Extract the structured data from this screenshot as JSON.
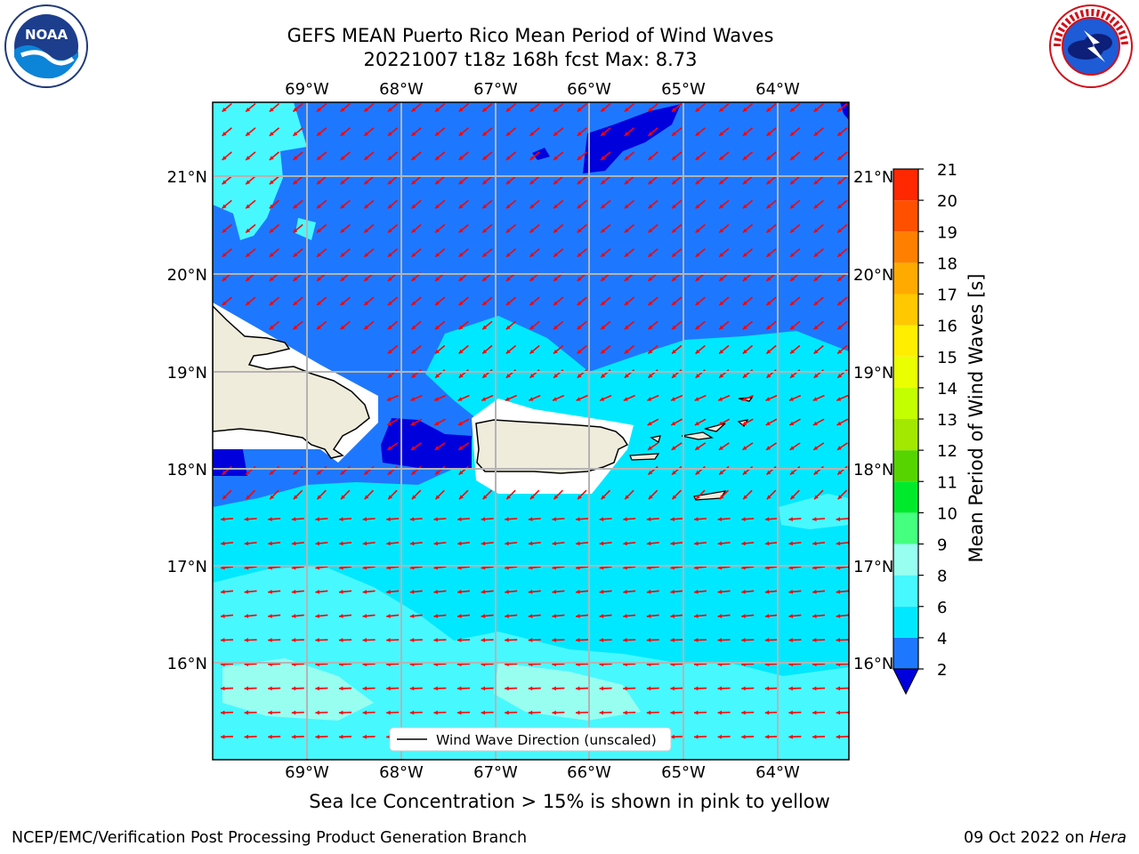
{
  "header": {
    "title_line1": "GEFS MEAN Puerto Rico Mean Period of Wind Waves",
    "title_line2": "20221007 t18z 168h fcst   Max: 8.73"
  },
  "logos": {
    "left": "noaa-logo",
    "right": "national-weather-service-logo",
    "left_text": "NOAA",
    "right_text": "NATIONAL WEATHER SERVICE"
  },
  "map": {
    "lon_labels": [
      "69°W",
      "68°W",
      "67°W",
      "66°W",
      "65°W",
      "64°W"
    ],
    "lat_labels": [
      "21°N",
      "20°N",
      "19°N",
      "18°N",
      "17°N",
      "16°N"
    ],
    "legend_label": "Wind Wave Direction (unscaled)",
    "colors": {
      "land": "#efecdc",
      "arrow": "#ff0000",
      "grid": "#b4b4b4"
    }
  },
  "colorbar": {
    "title": "Mean Period of Wind Waves [s]",
    "ticks": [
      "2",
      "4",
      "6",
      "8",
      "9",
      "10",
      "11",
      "12",
      "13",
      "14",
      "15",
      "16",
      "17",
      "18",
      "19",
      "20",
      "21"
    ],
    "colors": [
      "#0000dd",
      "#1e78ff",
      "#00e8ff",
      "#48f8ff",
      "#98fff0",
      "#45ff7f",
      "#00ea2b",
      "#56d400",
      "#a2e800",
      "#c4ff00",
      "#eaff00",
      "#ffee00",
      "#ffc800",
      "#ffaa00",
      "#ff8000",
      "#ff5000",
      "#ff2800",
      "#ff0000"
    ]
  },
  "footer": {
    "note": "Sea Ice Concentration > 15% is shown in pink to yellow",
    "left": "NCEP/EMC/Verification Post Processing Product Generation Branch",
    "date": "09 Oct 2022 on ",
    "host": "Hera"
  }
}
